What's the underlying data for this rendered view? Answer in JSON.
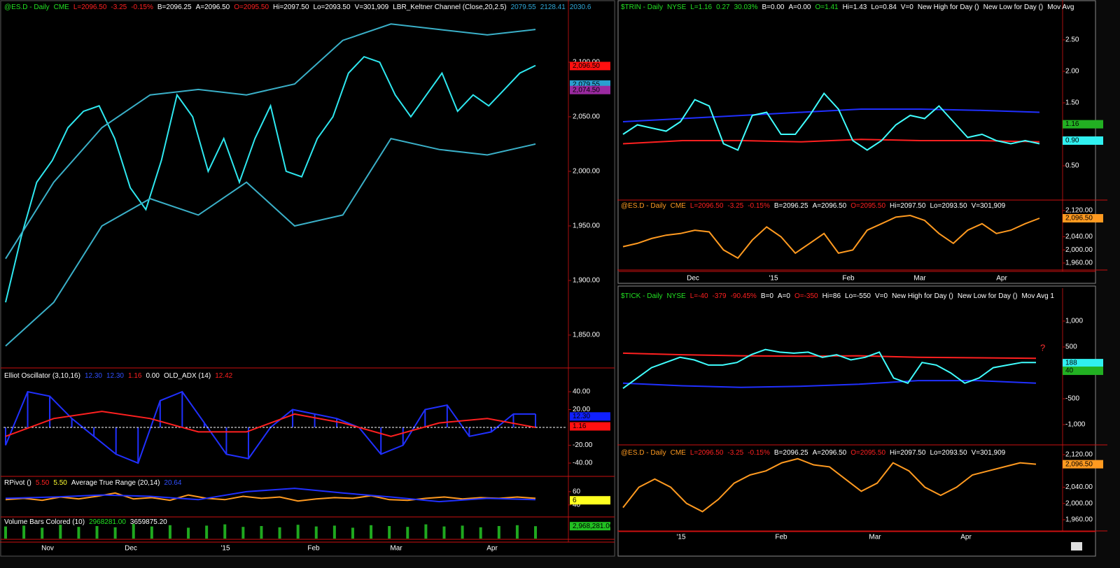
{
  "panels": [
    {
      "header": [
        {
          "text": "@ES.D - Daily",
          "color": "#22e022"
        },
        {
          "text": "CME",
          "color": "#22e022"
        },
        {
          "text": "L=2096.50",
          "color": "#ff2020"
        },
        {
          "text": "-3.25",
          "color": "#ff2020"
        },
        {
          "text": "-0.15%",
          "color": "#ff2020"
        },
        {
          "text": "B=2096.25",
          "color": "#ffffff"
        },
        {
          "text": "A=2096.50",
          "color": "#ffffff"
        },
        {
          "text": "O=2095.50",
          "color": "#ff2020"
        },
        {
          "text": "Hi=2097.50",
          "color": "#ffffff"
        },
        {
          "text": "Lo=2093.50",
          "color": "#ffffff"
        },
        {
          "text": "V=301,909",
          "color": "#ffffff"
        },
        {
          "text": "LBR_Keltner Channel (Close,20,2.5)",
          "color": "#ffffff"
        },
        {
          "text": "2079.55",
          "color": "#2fa8d8"
        },
        {
          "text": "2128.41",
          "color": "#2fa8d8"
        },
        {
          "text": "2030.6",
          "color": "#2fa8d8"
        }
      ],
      "ylim": [
        1820.5,
        2157
      ],
      "yticks": [
        {
          "value": 2100,
          "label": "2,100.00"
        },
        {
          "value": 2050,
          "label": "2,050.00"
        },
        {
          "value": 2000,
          "label": "2,000.00"
        },
        {
          "value": 1950,
          "label": "1,950.00"
        },
        {
          "value": 1900,
          "label": "1,900.00"
        },
        {
          "value": 1850,
          "label": "1,850.00"
        }
      ],
      "tags": [
        {
          "value": 2096.5,
          "label": "2,096.50",
          "color": "#ff1010"
        },
        {
          "value": 2079.55,
          "label": "2,079.55",
          "color": "#2a9fd0"
        },
        {
          "value": 2074.5,
          "label": "2,074.50",
          "color": "#9a2aa0"
        }
      ],
      "series": [
        {
          "color": "#2ee8f0",
          "style": "line",
          "values": [
            1880,
            1940,
            1990,
            2010,
            2040,
            2055,
            2060,
            2030,
            1985,
            1965,
            2010,
            2070,
            2050,
            2000,
            2030,
            1990,
            2030,
            2060,
            2000,
            1995,
            2030,
            2050,
            2090,
            2105,
            2100,
            2070,
            2050,
            2070,
            2090,
            2055,
            2070,
            2060,
            2075,
            2090,
            2097
          ]
        },
        {
          "color": "#3ab0c8",
          "style": "line",
          "values": [
            1920,
            1990,
            2040,
            2070,
            2075,
            2070,
            2080,
            2120,
            2135,
            2130,
            2125,
            2130
          ]
        },
        {
          "color": "#3ab0c8",
          "style": "line",
          "values": [
            1840,
            1880,
            1950,
            1975,
            1960,
            1990,
            1950,
            1960,
            2030,
            2020,
            2015,
            2025
          ]
        }
      ]
    },
    {
      "header": [
        {
          "text": "Elliot Oscillator (3,10,16)",
          "color": "#ffffff"
        },
        {
          "text": "12.30",
          "color": "#3050ff"
        },
        {
          "text": "12.30",
          "color": "#3050ff"
        },
        {
          "text": "1.16",
          "color": "#ff2020"
        },
        {
          "text": "0.00",
          "color": "#ffffff"
        },
        {
          "text": "OLD_ADX (14)",
          "color": "#ffffff"
        },
        {
          "text": "12.42",
          "color": "#ff2020"
        }
      ],
      "ylim": [
        -54.1,
        65.1
      ],
      "yticks": [
        {
          "value": 40,
          "label": "40.00"
        },
        {
          "value": 20,
          "label": "20.00"
        },
        {
          "value": -20,
          "label": "-20.00"
        },
        {
          "value": -40,
          "label": "-40.00"
        }
      ],
      "tags": [
        {
          "value": 12.3,
          "label": "12.30",
          "color": "#1020ff"
        },
        {
          "value": 1.16,
          "label": "1.16",
          "color": "#ff1010"
        }
      ],
      "series": [
        {
          "color": "#2030ff",
          "style": "histogram",
          "values": [
            -20,
            40,
            35,
            10,
            -10,
            -30,
            -40,
            30,
            40,
            5,
            -30,
            -35,
            0,
            20,
            15,
            10,
            0,
            -30,
            -20,
            20,
            25,
            -10,
            -5,
            15,
            15
          ]
        },
        {
          "color": "#ff2020",
          "style": "line",
          "values": [
            -10,
            10,
            18,
            10,
            -5,
            -5,
            15,
            5,
            -10,
            5,
            10,
            0
          ]
        }
      ]
    },
    {
      "header": [
        {
          "text": "RPivot ()",
          "color": "#ffffff"
        },
        {
          "text": "5.50",
          "color": "#ff2020"
        },
        {
          "text": "5.50",
          "color": "#ffff30"
        },
        {
          "text": "Average True Range (20,14)",
          "color": "#ffffff"
        },
        {
          "text": "20.64",
          "color": "#3050ff"
        }
      ],
      "ylim": [
        23,
        82
      ],
      "yticks": [
        60,
        40
      ],
      "tags": [
        {
          "value": 47,
          "label": "6",
          "color": "#ffff20"
        }
      ],
      "series": [
        {
          "color": "#ff9a20",
          "style": "line",
          "values": [
            48,
            50,
            47,
            52,
            49,
            53,
            58,
            49,
            51,
            47,
            55,
            50,
            48,
            53,
            50,
            52,
            46,
            49,
            51,
            50,
            54,
            48,
            47,
            50,
            52,
            49,
            51,
            50,
            52,
            50
          ]
        },
        {
          "color": "#2030ff",
          "style": "line",
          "values": [
            50,
            52,
            55,
            53,
            48,
            60,
            65,
            58,
            52,
            45,
            50,
            48
          ]
        }
      ]
    },
    {
      "header": [
        {
          "text": "Volume Bars Colored (10)",
          "color": "#ffffff"
        },
        {
          "text": "2968281.00",
          "color": "#22e022"
        },
        {
          "text": "3659875.20",
          "color": "#ffffff"
        }
      ],
      "ylim": [
        0,
        5000000
      ],
      "yticks": [],
      "tags": [
        {
          "value": 2968281,
          "label": "2,968,281.00",
          "color": "#22c022"
        }
      ],
      "series": [
        {
          "color": "#1fa81f",
          "style": "bars",
          "values": [
            2900000,
            3100000,
            2600000,
            3300000,
            2800000,
            3000000,
            2700000,
            3500000,
            2900000,
            3200000,
            2600000,
            3100000,
            3400000,
            2800000,
            3000000,
            2700000,
            3300000,
            2900000,
            3100000,
            2600000,
            3200000,
            3000000,
            2800000,
            3400000,
            2900000,
            3100000,
            2700000,
            3000000,
            3200000,
            2968281
          ]
        }
      ]
    },
    {
      "header": [
        {
          "text": "$TRIN - Daily",
          "color": "#22e022"
        },
        {
          "text": "NYSE",
          "color": "#22e022"
        },
        {
          "text": "L=1.16",
          "color": "#22e022"
        },
        {
          "text": "0.27",
          "color": "#22e022"
        },
        {
          "text": "30.03%",
          "color": "#22e022"
        },
        {
          "text": "B=0.00",
          "color": "#ffffff"
        },
        {
          "text": "A=0.00",
          "color": "#ffffff"
        },
        {
          "text": "O=1.41",
          "color": "#22e022"
        },
        {
          "text": "Hi=1.43",
          "color": "#ffffff"
        },
        {
          "text": "Lo=0.84",
          "color": "#ffffff"
        },
        {
          "text": "V=0",
          "color": "#ffffff"
        },
        {
          "text": "New High for Day ()",
          "color": "#ffffff"
        },
        {
          "text": "New Low for Day ()",
          "color": "#ffffff"
        },
        {
          "text": "Mov Avg",
          "color": "#ffffff"
        }
      ],
      "ylim": [
        -0.033,
        3.133
      ],
      "yticks": [
        {
          "value": 2.5,
          "label": "2.50"
        },
        {
          "value": 2,
          "label": "2.00"
        },
        {
          "value": 1.5,
          "label": "1.50"
        },
        {
          "value": 0.5,
          "label": "0.50"
        }
      ],
      "tags": [
        {
          "value": 1.16,
          "label": "1.16",
          "color": "#22b022"
        },
        {
          "value": 0.9,
          "label": "0.90",
          "color": "#30f0f0"
        }
      ],
      "series": [
        {
          "color": "#2030ff",
          "style": "line",
          "values": [
            1.2,
            1.25,
            1.3,
            1.35,
            1.4,
            1.4,
            1.38,
            1.35
          ]
        },
        {
          "color": "#ff2020",
          "style": "line",
          "values": [
            0.85,
            0.9,
            0.9,
            0.88,
            0.92,
            0.9,
            0.9,
            0.88
          ]
        },
        {
          "color": "#40ffff",
          "style": "line",
          "values": [
            1.0,
            1.15,
            1.1,
            1.05,
            1.2,
            1.55,
            1.45,
            0.85,
            0.75,
            1.3,
            1.35,
            1.0,
            1.0,
            1.3,
            1.65,
            1.4,
            0.9,
            0.75,
            0.9,
            1.15,
            1.3,
            1.25,
            1.45,
            1.2,
            0.95,
            1.0,
            0.9,
            0.85,
            0.9,
            0.85
          ]
        }
      ]
    },
    {
      "header": [
        {
          "text": "@ES.D - Daily",
          "color": "#ff9a20"
        },
        {
          "text": "CME",
          "color": "#ff9a20"
        },
        {
          "text": "L=2096.50",
          "color": "#ff2020"
        },
        {
          "text": "-3.25",
          "color": "#ff2020"
        },
        {
          "text": "-0.15%",
          "color": "#ff2020"
        },
        {
          "text": "B=2096.25",
          "color": "#ffffff"
        },
        {
          "text": "A=2096.50",
          "color": "#ffffff"
        },
        {
          "text": "O=2095.50",
          "color": "#ff2020"
        },
        {
          "text": "Hi=2097.50",
          "color": "#ffffff"
        },
        {
          "text": "Lo=2093.50",
          "color": "#ffffff"
        },
        {
          "text": "V=301,909",
          "color": "#ffffff"
        }
      ],
      "ylim": [
        1940.8,
        2149.9
      ],
      "yticks": [
        {
          "value": 2120,
          "label": "2,120.00"
        },
        {
          "value": 2040,
          "label": "2,040.00"
        },
        {
          "value": 2000,
          "label": "2,000.00"
        },
        {
          "value": 1960,
          "label": "1,960.00"
        }
      ],
      "tags": [
        {
          "value": 2096.5,
          "label": "2,096.50",
          "color": "#ff9a20"
        }
      ],
      "series": [
        {
          "color": "#ff9a20",
          "style": "line",
          "values": [
            2010,
            2020,
            2035,
            2045,
            2050,
            2060,
            2055,
            2000,
            1975,
            2030,
            2070,
            2040,
            1990,
            2020,
            2050,
            1990,
            2000,
            2060,
            2080,
            2100,
            2105,
            2090,
            2050,
            2020,
            2060,
            2080,
            2050,
            2060,
            2080,
            2096.5
          ]
        }
      ]
    },
    {
      "header": [
        {
          "text": "$TICK - Daily",
          "color": "#22e022"
        },
        {
          "text": "NYSE",
          "color": "#22e022"
        },
        {
          "text": "L=-40",
          "color": "#ff2020"
        },
        {
          "text": "-379",
          "color": "#ff2020"
        },
        {
          "text": "-90.45%",
          "color": "#ff2020"
        },
        {
          "text": "B=0",
          "color": "#ffffff"
        },
        {
          "text": "A=0",
          "color": "#ffffff"
        },
        {
          "text": "O=-350",
          "color": "#ff2020"
        },
        {
          "text": "Hi=86",
          "color": "#ffffff"
        },
        {
          "text": "Lo=-550",
          "color": "#ffffff"
        },
        {
          "text": "V=0",
          "color": "#ffffff"
        },
        {
          "text": "New High for Day ()",
          "color": "#ffffff"
        },
        {
          "text": "New Low for Day ()",
          "color": "#ffffff"
        },
        {
          "text": "Mov Avg 1",
          "color": "#ffffff"
        }
      ],
      "ylim": [
        -1378,
        1635
      ],
      "yticks": [
        {
          "value": 1000,
          "label": "1,000"
        },
        500,
        -500,
        {
          "value": -1000,
          "label": "-1,000"
        }
      ],
      "tags": [
        {
          "value": 188,
          "label": "188",
          "color": "#30f0f0"
        },
        {
          "value": 40,
          "label": "40",
          "color": "#22b022"
        }
      ],
      "annotation": "?",
      "series": [
        {
          "color": "#ff2020",
          "style": "line",
          "values": [
            380,
            350,
            330,
            320,
            330,
            300,
            290,
            280
          ]
        },
        {
          "color": "#2030ff",
          "style": "line",
          "values": [
            -200,
            -250,
            -280,
            -260,
            -220,
            -150,
            -150,
            -200
          ]
        },
        {
          "color": "#40ffff",
          "style": "line",
          "values": [
            -300,
            -100,
            100,
            200,
            300,
            250,
            150,
            150,
            200,
            350,
            450,
            400,
            380,
            400,
            300,
            350,
            250,
            300,
            400,
            -100,
            -200,
            200,
            150,
            0,
            -200,
            -100,
            100,
            150,
            200,
            200
          ]
        }
      ]
    },
    {
      "header": [
        {
          "text": "@ES.D - Daily",
          "color": "#ff9a20"
        },
        {
          "text": "CME",
          "color": "#ff9a20"
        },
        {
          "text": "L=2096.50",
          "color": "#ff2020"
        },
        {
          "text": "-3.25",
          "color": "#ff2020"
        },
        {
          "text": "-0.15%",
          "color": "#ff2020"
        },
        {
          "text": "B=2096.25",
          "color": "#ffffff"
        },
        {
          "text": "A=2096.50",
          "color": "#ffffff"
        },
        {
          "text": "O=2095.50",
          "color": "#ff2020"
        },
        {
          "text": "Hi=2097.50",
          "color": "#ffffff"
        },
        {
          "text": "Lo=2093.50",
          "color": "#ffffff"
        },
        {
          "text": "V=301,909",
          "color": "#ffffff"
        }
      ],
      "ylim": [
        1934.2,
        2140.6
      ],
      "yticks": [
        {
          "value": 2120,
          "label": "2,120.00"
        },
        {
          "value": 2040,
          "label": "2,040.00"
        },
        {
          "value": 2000,
          "label": "2,000.00"
        },
        {
          "value": 1960,
          "label": "1,960.00"
        }
      ],
      "tags": [
        {
          "value": 2096.5,
          "label": "2,096.50",
          "color": "#ff9a20"
        }
      ],
      "series": [
        {
          "color": "#ff9a20",
          "style": "line",
          "values": [
            1990,
            2040,
            2060,
            2040,
            2000,
            1980,
            2010,
            2050,
            2070,
            2080,
            2100,
            2110,
            2095,
            2090,
            2060,
            2030,
            2050,
            2100,
            2080,
            2040,
            2020,
            2040,
            2070,
            2080,
            2090,
            2100,
            2096.5
          ]
        }
      ]
    }
  ],
  "time_axes": [
    {
      "labels": [
        "Nov",
        "Dec",
        "'15",
        "Feb",
        "Mar",
        "Apr"
      ]
    },
    {
      "labels": [
        "Dec",
        "'15",
        "Feb",
        "Mar",
        "Apr"
      ]
    },
    {
      "labels": [
        "'15",
        "Feb",
        "Mar",
        "Apr"
      ]
    }
  ]
}
